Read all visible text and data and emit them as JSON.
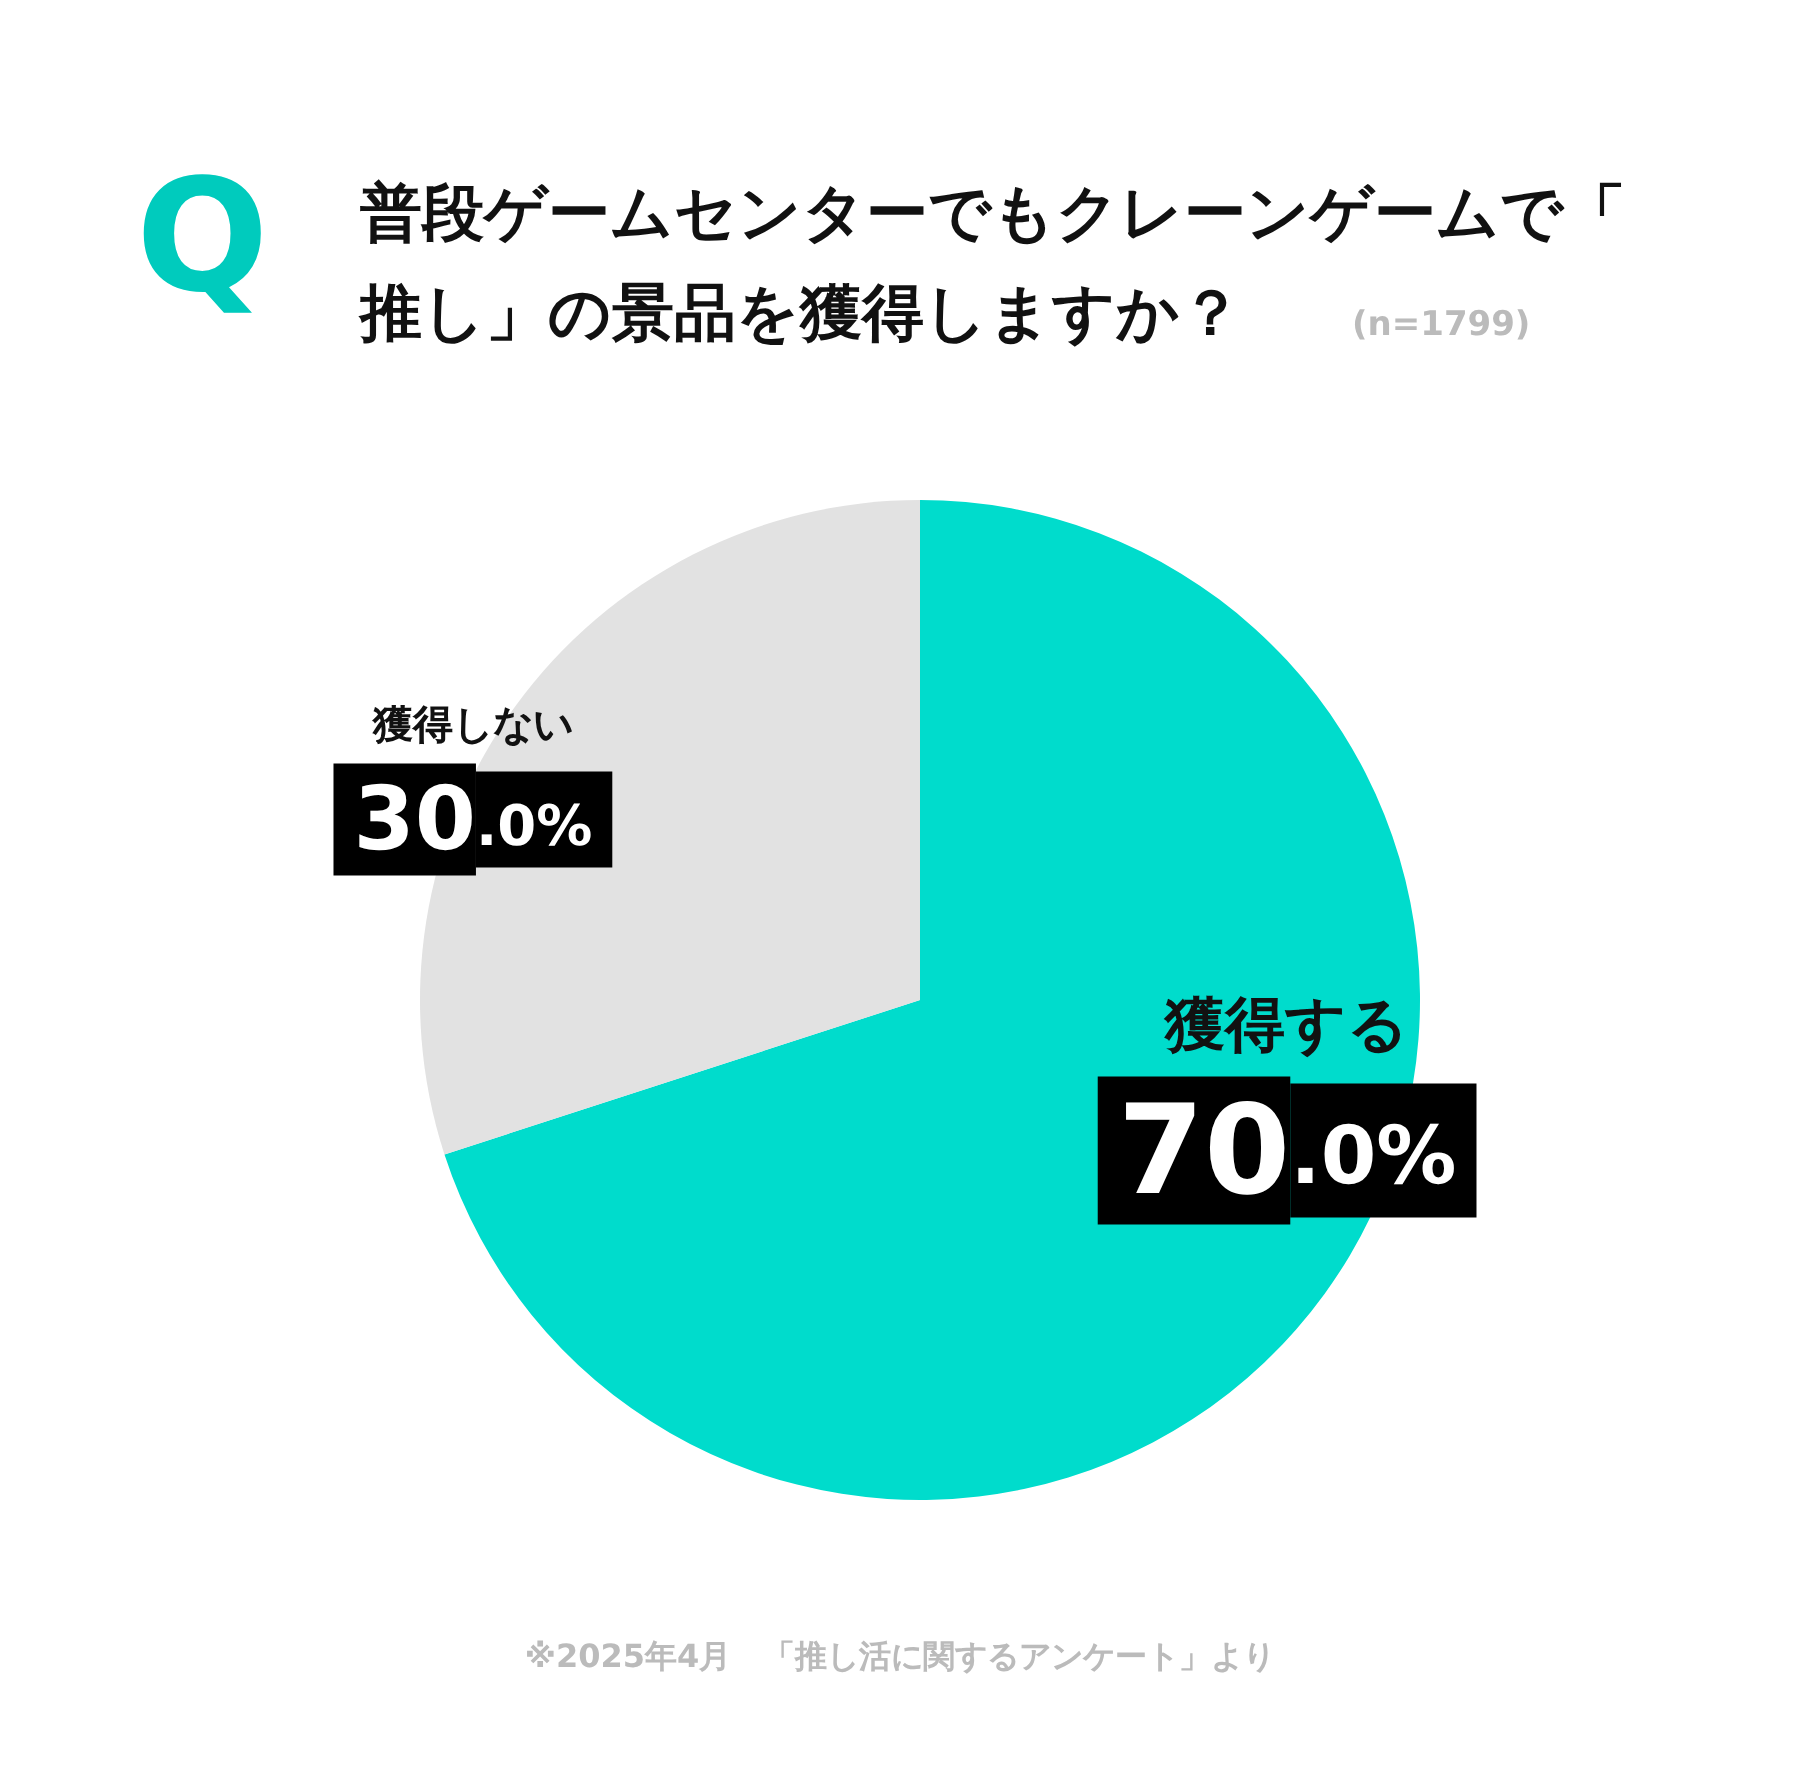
{
  "chart_data": {
    "type": "pie",
    "title": "普段ゲームセンターでもクレーンゲームで「推し」の景品を獲得しますか？",
    "subtitle": "(n=1799)",
    "categories": [
      "獲得する",
      "獲得しない"
    ],
    "values": [
      70.0,
      30.0
    ],
    "value_labels": [
      "70.0%",
      "30.0%"
    ],
    "colors": [
      "#00dccc",
      "#e2e2e2"
    ],
    "legend": false,
    "annotations": [
      "Q",
      "※2025年4月　「推し活に関するアンケート」より"
    ]
  }
}
